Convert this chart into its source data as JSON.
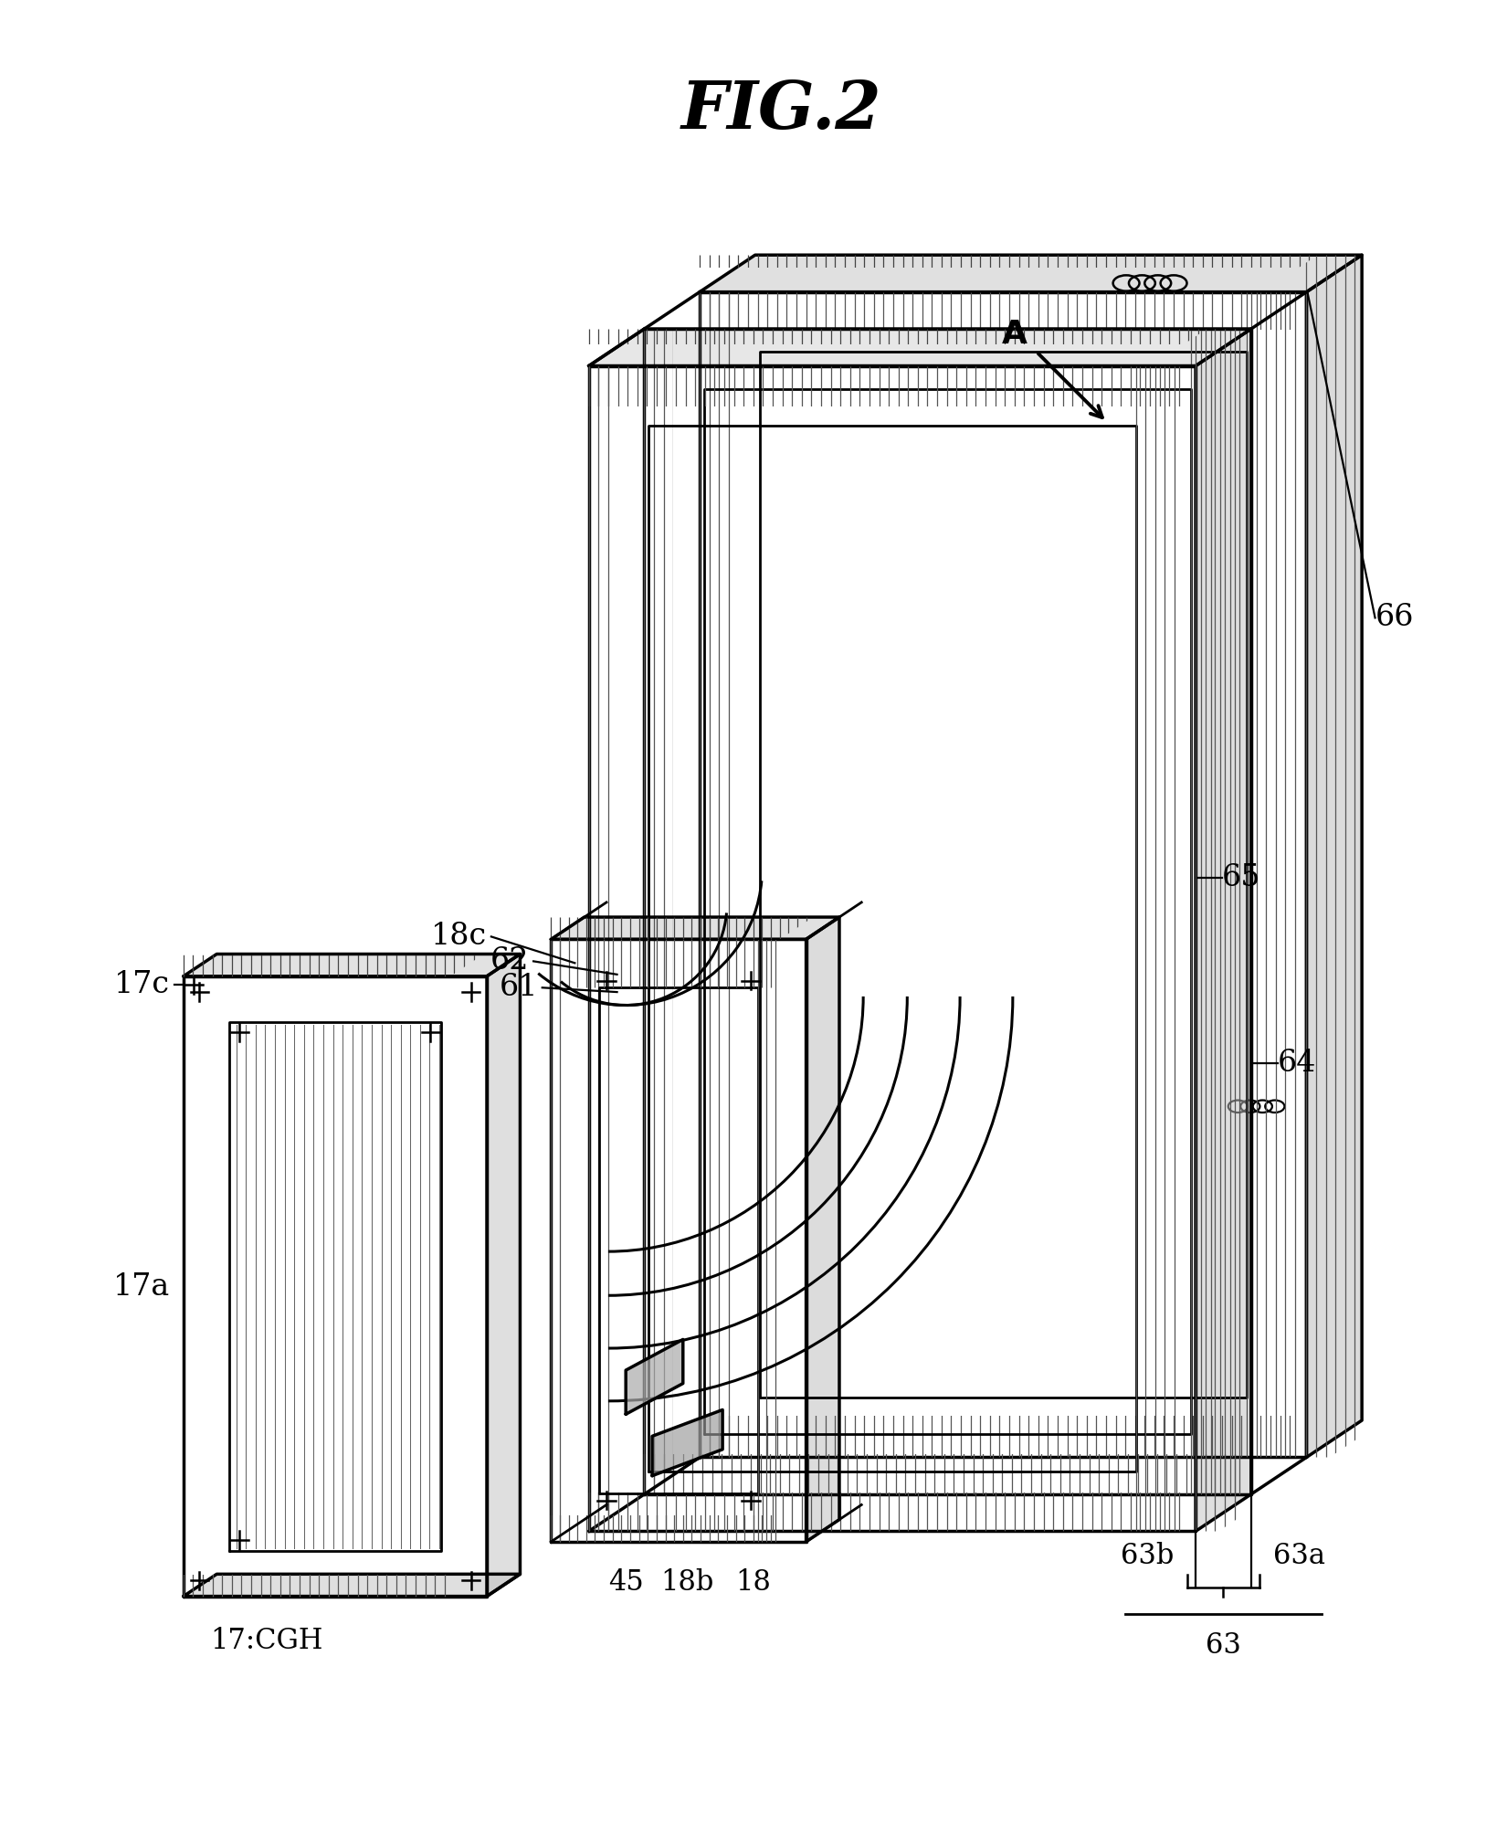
{
  "title": "FIG.2",
  "background_color": "#ffffff",
  "line_color": "#000000",
  "lw": 2.5,
  "labels": {
    "fig_title": "FIG.2",
    "A": "A",
    "66": "66",
    "65": "65",
    "64": "64",
    "63": "63",
    "63a": "63a",
    "63b": "63b",
    "62": "62",
    "61": "61",
    "18c": "18c",
    "18b": "18b",
    "18": "18",
    "17c": "17c",
    "17a": "17a",
    "17CGH": "17:CGH",
    "45": "45"
  }
}
